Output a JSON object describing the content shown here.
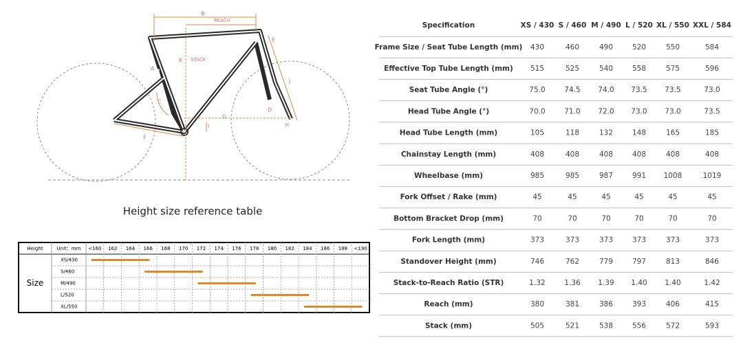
{
  "diagram": {
    "labels": {
      "B": "B",
      "reach": "REACH",
      "A": "A",
      "K": "K",
      "stack": "STACK",
      "E": "E",
      "J": "J",
      "C": "C",
      "D": "D",
      "G": "G",
      "I": "I",
      "H": "H",
      "F": "F"
    }
  },
  "height_table": {
    "title": "Height size reference table",
    "height_label": "Height",
    "unit_label": "Unit：mm",
    "heights": [
      "<160",
      "162",
      "164",
      "166",
      "168",
      "170",
      "172",
      "174",
      "176",
      "178",
      "180",
      "182",
      "184",
      "186",
      "188",
      "<190"
    ],
    "row_label": "Size",
    "sizes": [
      "XS/430",
      "S/460",
      "M/490",
      "L/520",
      "XL/550"
    ]
  },
  "spec_table": {
    "header": [
      "Specification",
      "XS / 430",
      "S / 460",
      "M / 490",
      "L / 520",
      "XL / 550",
      "XXL / 584"
    ],
    "rows": [
      [
        "Frame Size / Seat Tube Length (mm)",
        "430",
        "460",
        "490",
        "520",
        "550",
        "584"
      ],
      [
        "Effective Top Tube Length (mm)",
        "515",
        "525",
        "540",
        "558",
        "575",
        "596"
      ],
      [
        "Seat Tube Angle (°)",
        "75.0",
        "74.5",
        "74.0",
        "73.5",
        "73.5",
        "73.0"
      ],
      [
        "Head Tube Angle (°)",
        "70.0",
        "71.0",
        "72.0",
        "73.0",
        "73.0",
        "73.5"
      ],
      [
        "Head Tube Length (mm)",
        "105",
        "118",
        "132",
        "148",
        "165",
        "185"
      ],
      [
        "Chainstay Length (mm)",
        "408",
        "408",
        "408",
        "408",
        "408",
        "408"
      ],
      [
        "Wheelbase (mm)",
        "985",
        "985",
        "987",
        "991",
        "1008",
        "1019"
      ],
      [
        "Fork Offset / Rake (mm)",
        "45",
        "45",
        "45",
        "45",
        "45",
        "45"
      ],
      [
        "Bottom Bracket Drop (mm)",
        "70",
        "70",
        "70",
        "70",
        "70",
        "70"
      ],
      [
        "Fork Length (mm)",
        "373",
        "373",
        "373",
        "373",
        "373",
        "373"
      ],
      [
        "Standover Height (mm)",
        "746",
        "762",
        "779",
        "797",
        "813",
        "846"
      ],
      [
        "Stack-to-Reach Ratio (STR)",
        "1.32",
        "1.36",
        "1.39",
        "1.40",
        "1.40",
        "1.42"
      ],
      [
        "Reach (mm)",
        "380",
        "381",
        "386",
        "393",
        "406",
        "415"
      ],
      [
        "Stack (mm)",
        "505",
        "521",
        "538",
        "556",
        "572",
        "593"
      ]
    ]
  }
}
